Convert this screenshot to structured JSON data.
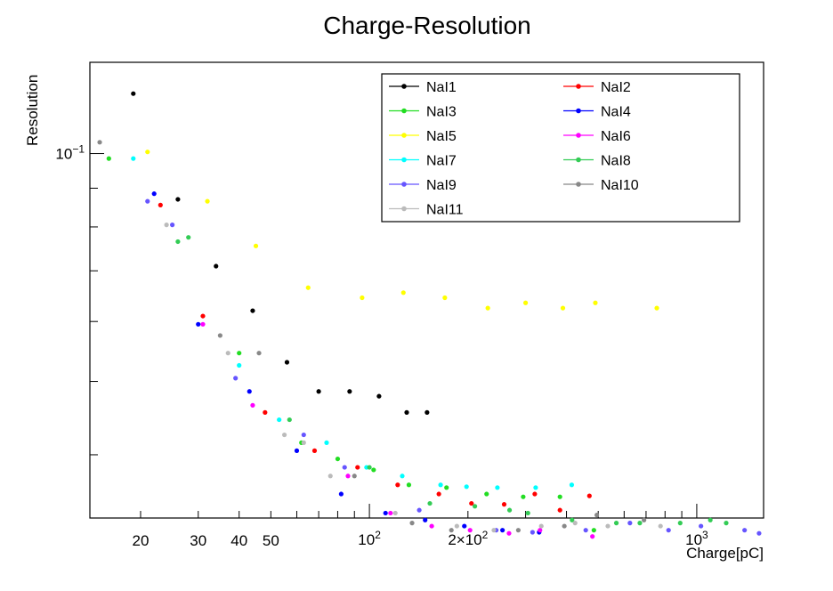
{
  "chart_data": {
    "type": "scatter",
    "title": "Charge-Resolution",
    "xlabel": "Charge[pC]",
    "ylabel": "Resolution",
    "x_scale": "log",
    "y_scale": "log",
    "xlim": [
      14,
      1600
    ],
    "ylim": [
      0.033,
      0.132
    ],
    "x_ticks": [
      {
        "value": 20,
        "label": "20"
      },
      {
        "value": 30,
        "label": "30"
      },
      {
        "value": 40,
        "label": "40"
      },
      {
        "value": 50,
        "label": "50"
      },
      {
        "value": 100,
        "label": "10^2"
      },
      {
        "value": 200,
        "label": "2×10^2"
      },
      {
        "value": 1000,
        "label": "10^3"
      }
    ],
    "y_ticks": [
      {
        "value": 0.1,
        "label": "10^-1"
      }
    ],
    "legend_position": "top-right",
    "series": [
      {
        "name": "NaI1",
        "color": "#000000",
        "points": [
          [
            19,
            0.12
          ],
          [
            26,
            0.087
          ],
          [
            34,
            0.071
          ],
          [
            44,
            0.062
          ],
          [
            56,
            0.053
          ],
          [
            70,
            0.0485
          ],
          [
            87,
            0.0485
          ],
          [
            107,
            0.0478
          ],
          [
            130,
            0.0455
          ],
          [
            150,
            0.0455
          ]
        ]
      },
      {
        "name": "NaI2",
        "color": "#ff0000",
        "points": [
          [
            23,
            0.0855
          ],
          [
            31,
            0.061
          ],
          [
            48,
            0.0455
          ],
          [
            68,
            0.0405
          ],
          [
            92,
            0.0385
          ],
          [
            122,
            0.0365
          ],
          [
            163,
            0.0355
          ],
          [
            205,
            0.0345
          ],
          [
            258,
            0.0344
          ],
          [
            320,
            0.0355
          ],
          [
            382,
            0.0338
          ],
          [
            470,
            0.0353
          ]
        ]
      },
      {
        "name": "NaI3",
        "color": "#22dd22",
        "points": [
          [
            16,
            0.0985
          ],
          [
            40,
            0.0545
          ],
          [
            62,
            0.0415
          ],
          [
            80,
            0.0395
          ],
          [
            103,
            0.0382
          ],
          [
            132,
            0.0365
          ],
          [
            172,
            0.0362
          ],
          [
            228,
            0.0355
          ],
          [
            295,
            0.0352
          ],
          [
            382,
            0.0352
          ],
          [
            485,
            0.0318
          ]
        ]
      },
      {
        "name": "NaI4",
        "color": "#0000ff",
        "points": [
          [
            22,
            0.0885
          ],
          [
            30,
            0.0595
          ],
          [
            43,
            0.0485
          ],
          [
            60,
            0.0405
          ],
          [
            82,
            0.0355
          ],
          [
            112,
            0.0335
          ],
          [
            148,
            0.0328
          ],
          [
            195,
            0.0322
          ],
          [
            255,
            0.0318
          ],
          [
            330,
            0.0316
          ]
        ]
      },
      {
        "name": "NaI5",
        "color": "#ffff00",
        "points": [
          [
            21,
            0.1005
          ],
          [
            32,
            0.0865
          ],
          [
            45,
            0.0755
          ],
          [
            65,
            0.0665
          ],
          [
            95,
            0.0645
          ],
          [
            127,
            0.0655
          ],
          [
            170,
            0.0645
          ],
          [
            230,
            0.0625
          ],
          [
            300,
            0.0635
          ],
          [
            390,
            0.0625
          ],
          [
            490,
            0.0635
          ],
          [
            755,
            0.0625
          ]
        ]
      },
      {
        "name": "NaI6",
        "color": "#ff00ff",
        "points": [
          [
            31,
            0.0595
          ],
          [
            44,
            0.0465
          ],
          [
            86,
            0.0375
          ],
          [
            116,
            0.0335
          ],
          [
            155,
            0.0322
          ],
          [
            203,
            0.0318
          ],
          [
            267,
            0.0315
          ],
          [
            332,
            0.0318
          ],
          [
            480,
            0.0312
          ]
        ]
      },
      {
        "name": "NaI7",
        "color": "#00ffff",
        "points": [
          [
            19,
            0.0985
          ],
          [
            40,
            0.0525
          ],
          [
            53,
            0.0445
          ],
          [
            74,
            0.0415
          ],
          [
            98,
            0.0385
          ],
          [
            126,
            0.0375
          ],
          [
            165,
            0.0365
          ],
          [
            198,
            0.0363
          ],
          [
            246,
            0.0362
          ],
          [
            322,
            0.0362
          ],
          [
            415,
            0.0365
          ]
        ]
      },
      {
        "name": "NaI8",
        "color": "#33cc55",
        "points": [
          [
            26,
            0.0765
          ],
          [
            28,
            0.0775
          ],
          [
            57,
            0.0445
          ],
          [
            100,
            0.0385
          ],
          [
            153,
            0.0345
          ],
          [
            210,
            0.0342
          ],
          [
            268,
            0.0338
          ],
          [
            305,
            0.0335
          ],
          [
            416,
            0.0328
          ],
          [
            568,
            0.0325
          ],
          [
            670,
            0.0325
          ],
          [
            890,
            0.0325
          ],
          [
            1100,
            0.0328
          ],
          [
            1230,
            0.0325
          ]
        ]
      },
      {
        "name": "NaI9",
        "color": "#6655ff",
        "points": [
          [
            21,
            0.0865
          ],
          [
            25,
            0.0805
          ],
          [
            39,
            0.0505
          ],
          [
            63,
            0.0425
          ],
          [
            84,
            0.0385
          ],
          [
            142,
            0.0338
          ],
          [
            244,
            0.0318
          ],
          [
            315,
            0.0316
          ],
          [
            458,
            0.0318
          ],
          [
            625,
            0.0325
          ],
          [
            820,
            0.0318
          ],
          [
            1030,
            0.0322
          ],
          [
            1400,
            0.0318
          ],
          [
            1550,
            0.0315
          ]
        ]
      },
      {
        "name": "NaI10",
        "color": "#888888",
        "points": [
          [
            15,
            0.1035
          ],
          [
            35,
            0.0575
          ],
          [
            46,
            0.0545
          ],
          [
            90,
            0.0375
          ],
          [
            135,
            0.0325
          ],
          [
            178,
            0.0318
          ],
          [
            285,
            0.0318
          ],
          [
            394,
            0.0322
          ],
          [
            495,
            0.0333
          ],
          [
            690,
            0.0328
          ]
        ]
      },
      {
        "name": "NaI11",
        "color": "#bbbbbb",
        "points": [
          [
            24,
            0.0805
          ],
          [
            37,
            0.0545
          ],
          [
            55,
            0.0425
          ],
          [
            63,
            0.0415
          ],
          [
            76,
            0.0375
          ],
          [
            120,
            0.0335
          ],
          [
            185,
            0.0322
          ],
          [
            240,
            0.0318
          ],
          [
            335,
            0.0322
          ],
          [
            425,
            0.0325
          ],
          [
            535,
            0.0322
          ],
          [
            775,
            0.0322
          ]
        ]
      }
    ]
  }
}
